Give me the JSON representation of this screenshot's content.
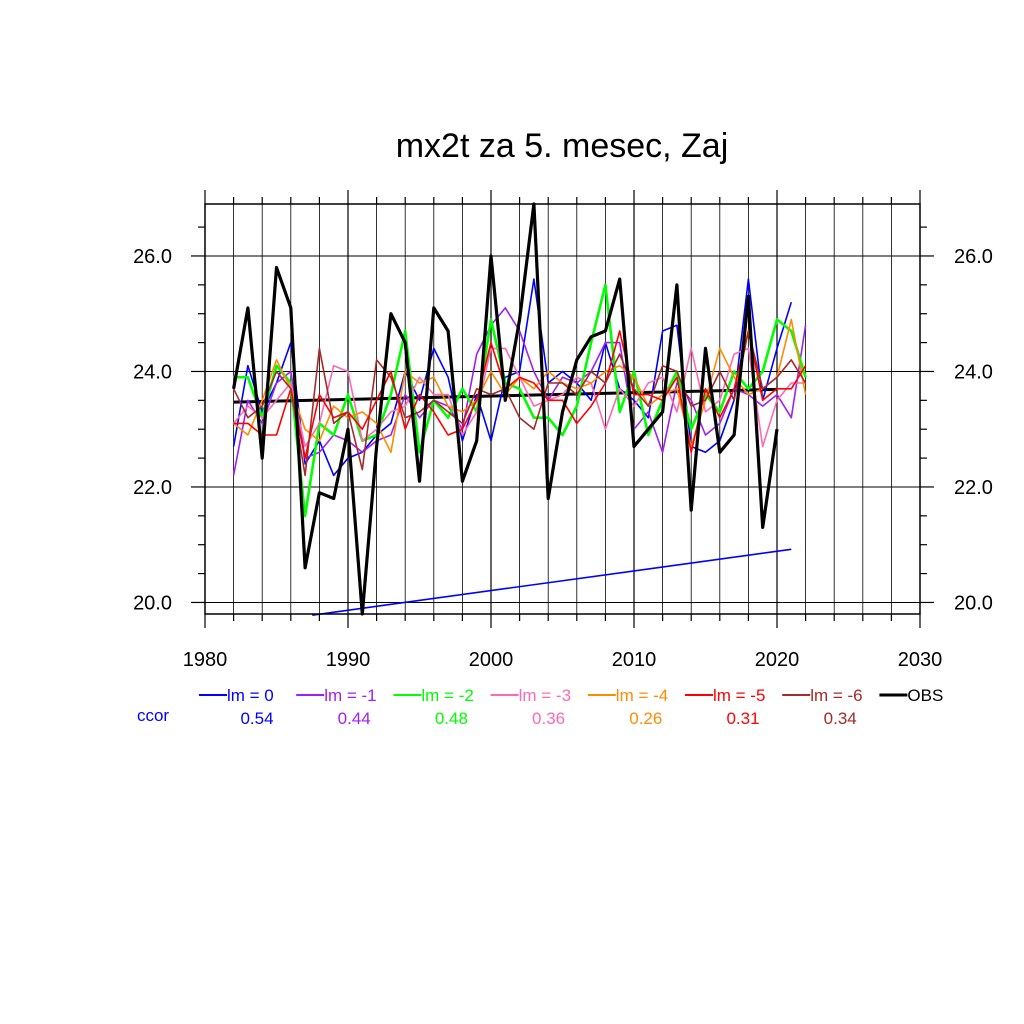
{
  "chart_data": {
    "type": "line",
    "title": "mx2t za 5. mesec, Zaj",
    "xlabel": "",
    "ylabel": "",
    "xlim": [
      1980,
      2030
    ],
    "ylim": [
      19.8,
      26.9
    ],
    "x_ticks": [
      "1980",
      "1990",
      "2000",
      "2010",
      "2020",
      "2030"
    ],
    "y_ticks": [
      "20.0",
      "22.0",
      "24.0",
      "26.0"
    ],
    "grid": true,
    "legend_position": "bottom",
    "ccor_label": "ccor",
    "series": [
      {
        "name": "lm = 0",
        "color": "#0000ff",
        "ccor": "0.54",
        "x": [
          1982,
          1983,
          1984,
          1985,
          1986,
          1987,
          1988,
          1989,
          1990,
          1991,
          1992,
          1993,
          1994,
          1995,
          1996,
          1997,
          1998,
          1999,
          2000,
          2001,
          2002,
          2003,
          2004,
          2005,
          2006,
          2007,
          2008,
          2009,
          2010,
          2011,
          2012,
          2013,
          2014,
          2015,
          2016,
          2017,
          2018,
          2019,
          2020,
          2021
        ],
        "y": [
          22.7,
          24.1,
          23.3,
          23.8,
          24.5,
          22.4,
          22.8,
          22.2,
          22.5,
          22.6,
          22.9,
          23.1,
          24.0,
          23.5,
          24.4,
          23.9,
          22.8,
          23.6,
          22.8,
          23.9,
          24.0,
          25.6,
          23.8,
          24.0,
          23.8,
          23.5,
          24.5,
          23.7,
          23.5,
          23.2,
          24.7,
          24.8,
          22.7,
          22.6,
          22.8,
          23.5,
          25.6,
          23.5,
          24.4,
          25.2
        ]
      },
      {
        "name": "lm = -1",
        "color": "#a020f0",
        "ccor": "0.44",
        "x": [
          1982,
          1983,
          1984,
          1985,
          1986,
          1987,
          1988,
          1989,
          1990,
          1991,
          1992,
          1993,
          1994,
          1995,
          1996,
          1997,
          1998,
          1999,
          2000,
          2001,
          2002,
          2003,
          2004,
          2005,
          2006,
          2007,
          2008,
          2009,
          2010,
          2011,
          2012,
          2013,
          2014,
          2015,
          2016,
          2017,
          2018,
          2019,
          2020,
          2021,
          2022
        ],
        "y": [
          22.2,
          23.5,
          23.1,
          23.8,
          24.0,
          22.5,
          22.6,
          22.9,
          22.8,
          22.6,
          22.8,
          22.9,
          23.6,
          23.2,
          23.5,
          23.4,
          23.0,
          24.3,
          24.8,
          25.1,
          24.7,
          24.0,
          23.5,
          23.9,
          23.8,
          24.0,
          24.5,
          24.5,
          23.0,
          23.3,
          22.6,
          23.8,
          23.5,
          22.9,
          23.1,
          23.7,
          23.6,
          23.4,
          23.6,
          23.2,
          24.8
        ]
      },
      {
        "name": "lm = -2",
        "color": "#00ff00",
        "ccor": "0.48",
        "x": [
          1982,
          1983,
          1984,
          1985,
          1986,
          1987,
          1988,
          1989,
          1990,
          1991,
          1992,
          1993,
          1994,
          1995,
          1996,
          1997,
          1998,
          1999,
          2000,
          2001,
          2002,
          2003,
          2004,
          2005,
          2006,
          2007,
          2008,
          2009,
          2010,
          2011,
          2012,
          2013,
          2014,
          2015,
          2016,
          2017,
          2018,
          2019,
          2020,
          2021,
          2022
        ],
        "y": [
          23.9,
          23.9,
          23.2,
          24.1,
          23.8,
          21.5,
          23.1,
          22.9,
          23.6,
          22.8,
          22.9,
          23.6,
          24.7,
          22.6,
          23.5,
          23.2,
          23.7,
          23.3,
          24.9,
          23.8,
          23.7,
          23.2,
          23.2,
          22.9,
          23.4,
          24.5,
          25.5,
          23.3,
          24.0,
          22.9,
          23.5,
          24.0,
          23.0,
          23.6,
          23.3,
          24.0,
          23.7,
          24.0,
          24.9,
          24.7,
          23.9
        ]
      },
      {
        "name": "lm = -3",
        "color": "#ff69b4",
        "ccor": "0.36",
        "x": [
          1982,
          1983,
          1984,
          1985,
          1986,
          1987,
          1988,
          1989,
          1990,
          1991,
          1992,
          1993,
          1994,
          1995,
          1996,
          1997,
          1998,
          1999,
          2000,
          2001,
          2002,
          2003,
          2004,
          2005,
          2006,
          2007,
          2008,
          2009,
          2010,
          2011,
          2012,
          2013,
          2014,
          2015,
          2016,
          2017,
          2018,
          2019,
          2020,
          2021,
          2022
        ],
        "y": [
          23.1,
          23.4,
          23.2,
          23.5,
          23.8,
          22.7,
          23.1,
          24.1,
          24.0,
          22.8,
          23.0,
          23.3,
          23.4,
          23.9,
          23.6,
          23.6,
          22.9,
          23.3,
          24.4,
          24.4,
          23.9,
          23.4,
          23.5,
          23.6,
          23.9,
          23.8,
          23.0,
          23.7,
          23.4,
          23.8,
          23.9,
          23.3,
          24.4,
          23.3,
          23.5,
          24.3,
          24.4,
          22.7,
          23.5,
          23.8,
          23.8
        ]
      },
      {
        "name": "lm = -4",
        "color": "#ff8c00",
        "ccor": "0.26",
        "x": [
          1982,
          1983,
          1984,
          1985,
          1986,
          1987,
          1988,
          1989,
          1990,
          1991,
          1992,
          1993,
          1994,
          1995,
          1996,
          1997,
          1998,
          1999,
          2000,
          2001,
          2002,
          2003,
          2004,
          2005,
          2006,
          2007,
          2008,
          2009,
          2010,
          2011,
          2012,
          2013,
          2014,
          2015,
          2016,
          2017,
          2018,
          2019,
          2020,
          2021,
          2022
        ],
        "y": [
          23.1,
          22.9,
          23.5,
          24.2,
          23.7,
          23.0,
          22.8,
          23.4,
          23.2,
          23.3,
          23.1,
          22.6,
          24.0,
          23.8,
          23.9,
          23.4,
          23.3,
          23.5,
          24.0,
          23.6,
          23.9,
          23.7,
          24.0,
          23.8,
          23.7,
          23.8,
          24.0,
          24.1,
          23.9,
          23.4,
          23.6,
          23.7,
          22.7,
          23.5,
          24.4,
          23.9,
          23.6,
          23.7,
          23.9,
          24.9,
          23.6
        ]
      },
      {
        "name": "lm = -5",
        "color": "#ff0000",
        "ccor": "0.31",
        "x": [
          1982,
          1983,
          1984,
          1985,
          1986,
          1987,
          1988,
          1989,
          1990,
          1991,
          1992,
          1993,
          1994,
          1995,
          1996,
          1997,
          1998,
          1999,
          2000,
          2001,
          2002,
          2003,
          2004,
          2005,
          2006,
          2007,
          2008,
          2009,
          2010,
          2011,
          2012,
          2013,
          2014,
          2015,
          2016,
          2017,
          2018,
          2019,
          2020,
          2021,
          2022
        ],
        "y": [
          23.1,
          23.1,
          22.9,
          22.9,
          23.7,
          22.5,
          23.6,
          23.2,
          23.3,
          23.0,
          23.5,
          24.0,
          23.0,
          23.6,
          23.3,
          22.9,
          23.0,
          23.5,
          24.5,
          23.7,
          23.9,
          23.8,
          23.5,
          23.5,
          23.1,
          23.4,
          23.8,
          24.7,
          23.6,
          23.6,
          23.5,
          23.9,
          22.6,
          23.7,
          23.2,
          23.7,
          24.7,
          23.5,
          23.7,
          23.7,
          24.1
        ]
      },
      {
        "name": "lm = -6",
        "color": "#a52a2a",
        "ccor": "0.34",
        "x": [
          1982,
          1983,
          1984,
          1985,
          1986,
          1987,
          1988,
          1989,
          1990,
          1991,
          1992,
          1993,
          1994,
          1995,
          1996,
          1997,
          1998,
          1999,
          2000,
          2001,
          2002,
          2003,
          2004,
          2005,
          2006,
          2007,
          2008,
          2009,
          2010,
          2011,
          2012,
          2013,
          2014,
          2015,
          2016,
          2017,
          2018,
          2019,
          2020,
          2021,
          2022
        ],
        "y": [
          23.7,
          23.2,
          23.4,
          24.0,
          23.7,
          22.2,
          24.4,
          23.1,
          23.3,
          22.3,
          24.2,
          23.9,
          23.2,
          23.3,
          23.5,
          23.3,
          23.1,
          23.7,
          23.6,
          23.7,
          23.2,
          23.0,
          23.8,
          23.8,
          23.6,
          24.0,
          23.8,
          24.3,
          23.7,
          23.4,
          24.1,
          24.0,
          23.4,
          23.5,
          24.0,
          23.5,
          24.7,
          23.7,
          23.9,
          24.2,
          23.8
        ]
      },
      {
        "name": "OBS",
        "color": "#000000",
        "ccor": "",
        "x": [
          1982,
          1983,
          1984,
          1985,
          1986,
          1987,
          1988,
          1989,
          1990,
          1991,
          1992,
          1993,
          1994,
          1995,
          1996,
          1997,
          1998,
          1999,
          2000,
          2001,
          2002,
          2003,
          2004,
          2005,
          2006,
          2007,
          2008,
          2009,
          2010,
          2011,
          2012,
          2013,
          2014,
          2015,
          2016,
          2017,
          2018,
          2019,
          2020
        ],
        "y": [
          23.7,
          25.1,
          22.5,
          25.8,
          25.1,
          20.6,
          21.9,
          21.8,
          23.0,
          19.8,
          22.7,
          25.0,
          24.5,
          22.1,
          25.1,
          24.7,
          22.1,
          22.8,
          26.0,
          23.5,
          24.9,
          26.9,
          21.8,
          23.3,
          24.2,
          24.6,
          24.7,
          25.6,
          22.7,
          23.0,
          23.3,
          25.5,
          21.6,
          24.4,
          22.6,
          22.9,
          25.3,
          21.3,
          23.0
        ]
      }
    ],
    "trend_lines": [
      {
        "color": "#000000",
        "x": [
          1982,
          2020
        ],
        "y": [
          23.47,
          23.69
        ]
      },
      {
        "color": "#0000ff",
        "x": [
          1987.5,
          2021
        ],
        "y": [
          19.78,
          20.92
        ]
      }
    ]
  }
}
